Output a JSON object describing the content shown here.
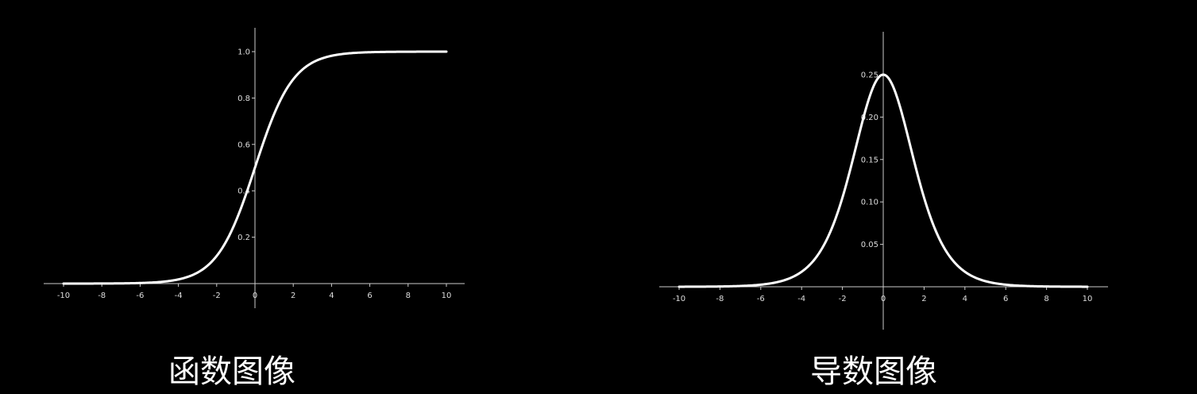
{
  "chart_data": [
    {
      "type": "line",
      "function": "sigmoid",
      "title": "",
      "caption": "函数图像",
      "xlabel": "",
      "ylabel": "",
      "xlim": [
        -10,
        10
      ],
      "ylim": [
        -0.1,
        1.1
      ],
      "x_ticks": [
        -10,
        -8,
        -6,
        -4,
        -2,
        0,
        2,
        4,
        6,
        8,
        10
      ],
      "x_tick_labels": [
        "-10",
        "-8",
        "-6",
        "-4",
        "-2",
        "0",
        "2",
        "4",
        "6",
        "8",
        "10"
      ],
      "y_ticks": [
        0.2,
        0.4,
        0.6,
        0.8,
        1.0
      ],
      "y_tick_labels": [
        "0.2",
        "0.4",
        "0.6",
        "0.8",
        "1.0"
      ],
      "x": [
        -10,
        -8,
        -6,
        -4,
        -3,
        -2,
        -1,
        0,
        1,
        2,
        3,
        4,
        6,
        8,
        10
      ],
      "values": [
        0.0,
        0.0003,
        0.0025,
        0.018,
        0.047,
        0.119,
        0.269,
        0.5,
        0.731,
        0.881,
        0.953,
        0.982,
        0.9975,
        0.9997,
        1.0
      ],
      "grid": false,
      "line_color": "#ffffff",
      "axis_color": "#cccccc"
    },
    {
      "type": "line",
      "function": "sigmoid-derivative",
      "title": "",
      "caption": "导数图像",
      "xlabel": "",
      "ylabel": "",
      "xlim": [
        -10,
        10
      ],
      "ylim": [
        -0.1,
        0.3
      ],
      "x_ticks": [
        -10,
        -8,
        -6,
        -4,
        -2,
        0,
        2,
        4,
        6,
        8,
        10
      ],
      "x_tick_labels": [
        "-10",
        "-8",
        "-6",
        "-4",
        "-2",
        "0",
        "2",
        "4",
        "6",
        "8",
        "10"
      ],
      "y_ticks": [
        0.05,
        0.1,
        0.15,
        0.2,
        0.25
      ],
      "y_tick_labels": [
        "0.05",
        "0.10",
        "0.15",
        "0.20",
        "0.25"
      ],
      "x": [
        -10,
        -8,
        -6,
        -4,
        -3,
        -2,
        -1,
        0,
        1,
        2,
        3,
        4,
        6,
        8,
        10
      ],
      "values": [
        0.0,
        0.0003,
        0.0025,
        0.0177,
        0.045,
        0.105,
        0.197,
        0.25,
        0.197,
        0.105,
        0.045,
        0.0177,
        0.0025,
        0.0003,
        0.0
      ],
      "grid": false,
      "line_color": "#ffffff",
      "axis_color": "#cccccc"
    }
  ]
}
